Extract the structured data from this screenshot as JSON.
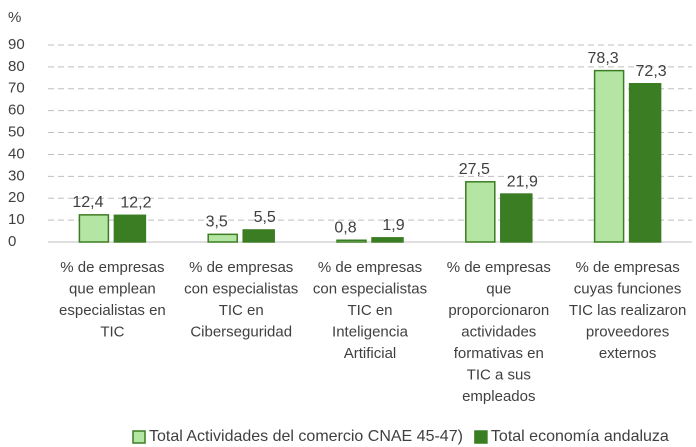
{
  "chart_data": {
    "type": "bar",
    "y_label": "%",
    "categories": [
      "% de empresas\nque emplean\nespecialistas en\nTIC",
      "% de empresas\ncon especialistas\nTIC en\nCiberseguridad",
      "% de empresas\ncon especialistas\nTIC en\nInteligencia\nArtificial",
      "% de empresas\nque\nproporcionaron\nactividades\nformativas en\nTIC a sus\nempleados",
      "% de empresas\ncuyas funciones\nTIC las realizaron\nproveedores\nexternos"
    ],
    "series": [
      {
        "name": "Total Actividades del comercio CNAE 45-47)",
        "color": "#b4e5a2",
        "edge": "#3b7d23",
        "values": [
          12.4,
          3.5,
          0.8,
          27.5,
          78.3
        ],
        "value_labels": [
          "12,4",
          "3,5",
          "0,8",
          "27,5",
          "78,3"
        ]
      },
      {
        "name": "Total economía andaluza",
        "color": "#3b7d23",
        "edge": "#3b7d23",
        "values": [
          12.2,
          5.5,
          1.9,
          21.9,
          72.3
        ],
        "value_labels": [
          "12,2",
          "5,5",
          "1,9",
          "21,9",
          "72,3"
        ]
      }
    ],
    "ylim": [
      0,
      90
    ],
    "yticks": [
      0,
      10,
      20,
      30,
      40,
      50,
      60,
      70,
      80,
      90
    ],
    "grid": true,
    "legend": "bottom"
  }
}
